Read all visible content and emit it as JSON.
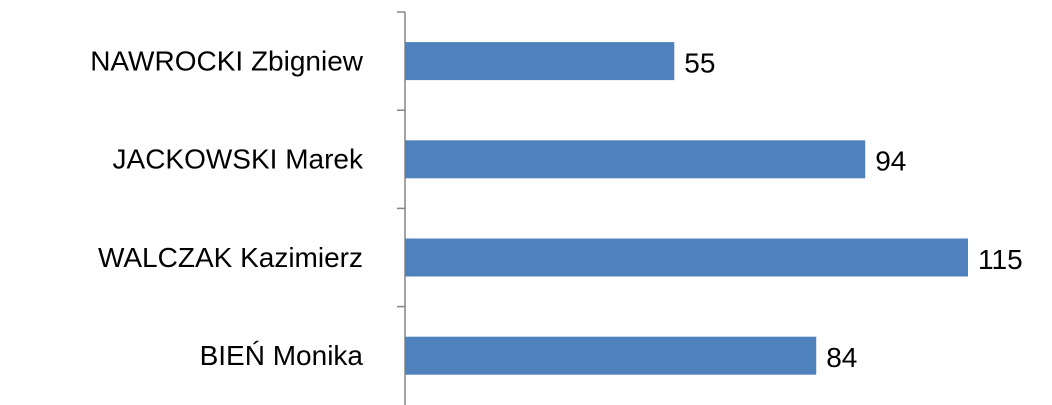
{
  "chart_data": {
    "type": "bar",
    "orientation": "horizontal",
    "categories": [
      "NAWROCKI Zbigniew",
      "JACKOWSKI Marek",
      "WALCZAK Kazimierz",
      "BIEŃ Monika"
    ],
    "values": [
      55,
      94,
      115,
      84
    ],
    "color": "#4f81bd"
  }
}
